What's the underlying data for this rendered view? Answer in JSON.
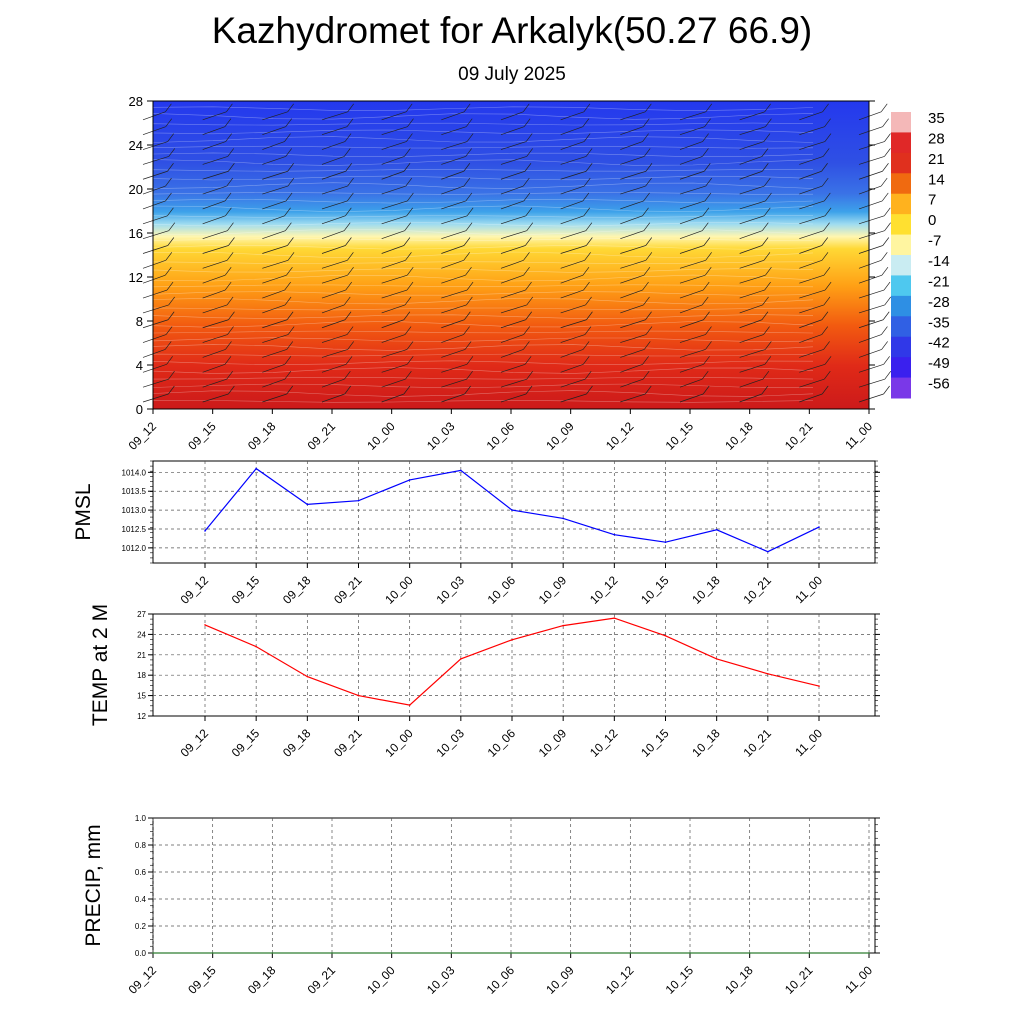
{
  "title": "Kazhydromet for Arkalyk(50.27 66.9)",
  "subtitle": "09 July 2025",
  "chart_data": [
    {
      "type": "heatmap",
      "description_of_content": "",
      "x_ticks": [
        "09_12",
        "09_15",
        "09_18",
        "09_21",
        "10_00",
        "10_03",
        "10_06",
        "10_09",
        "10_12",
        "10_15",
        "10_18",
        "10_21",
        "11_00"
      ],
      "y_ticks": [
        0,
        4,
        8,
        12,
        16,
        20,
        24,
        28
      ],
      "ylim": [
        0,
        28
      ],
      "colorbar_labels": [
        "35",
        "28",
        "21",
        "14",
        "7",
        "0",
        "-7",
        "-14",
        "-21",
        "-28",
        "-35",
        "-42",
        "-49",
        "-56"
      ],
      "colorbar_colors": [
        "#f4b8b8",
        "#e02828",
        "#e0301e",
        "#f06a10",
        "#ffb21e",
        "#ffe030",
        "#fff5a0",
        "#c9ecf2",
        "#4ec8ef",
        "#2e8fe4",
        "#3060e4",
        "#3038e8",
        "#3a20ee",
        "#7a38e8"
      ],
      "colormap_stops": [
        "#cc1a1a",
        "#e02a18",
        "#f25a10",
        "#ffa015",
        "#ffd835",
        "#fff6b0",
        "#9fdcf0",
        "#3da2ea",
        "#3a72e6",
        "#2f50e4",
        "#2438ee"
      ],
      "grid": false,
      "wind_barbs": true
    },
    {
      "type": "line",
      "ylabel": "PMSL",
      "x": [
        "09_12",
        "09_15",
        "09_18",
        "09_21",
        "10_00",
        "10_03",
        "10_06",
        "10_09",
        "10_12",
        "10_15",
        "10_18",
        "10_21",
        "11_00"
      ],
      "series": [
        {
          "values": [
            1012.45,
            1014.1,
            1013.15,
            1013.25,
            1013.8,
            1014.05,
            1013.0,
            1012.78,
            1012.35,
            1012.15,
            1012.48,
            1011.9,
            1012.55
          ],
          "color": "#0000ff"
        }
      ],
      "ylim": [
        1011.6,
        1014.3
      ],
      "y_ticks": [
        "1012.0",
        "1012.5",
        "1013.0",
        "1013.5",
        "1014.0"
      ],
      "grid": true
    },
    {
      "type": "line",
      "ylabel": "TEMP at 2 M",
      "x": [
        "09_12",
        "09_15",
        "09_18",
        "09_21",
        "10_00",
        "10_03",
        "10_06",
        "10_09",
        "10_12",
        "10_15",
        "10_18",
        "10_21",
        "11_00"
      ],
      "series": [
        {
          "values": [
            25.4,
            22.2,
            17.8,
            15.0,
            13.6,
            20.4,
            23.2,
            25.3,
            26.4,
            23.8,
            20.4,
            18.2,
            16.4
          ],
          "color": "#ff0000"
        }
      ],
      "ylim": [
        12,
        27
      ],
      "y_ticks": [
        "12",
        "15",
        "18",
        "21",
        "24",
        "27"
      ],
      "grid": true
    },
    {
      "type": "line",
      "ylabel": "PRECIP, mm",
      "x": [
        "09_12",
        "09_15",
        "09_18",
        "09_21",
        "10_00",
        "10_03",
        "10_06",
        "10_09",
        "10_12",
        "10_15",
        "10_18",
        "10_21",
        "11_00"
      ],
      "series": [
        {
          "values": [
            0,
            0,
            0,
            0,
            0,
            0,
            0,
            0,
            0,
            0,
            0,
            0,
            0
          ],
          "color": "#2e7d32"
        }
      ],
      "ylim": [
        0,
        1
      ],
      "y_ticks": [
        "0.0",
        "0.2",
        "0.4",
        "0.6",
        "0.8",
        "1.0"
      ],
      "grid": true
    }
  ]
}
